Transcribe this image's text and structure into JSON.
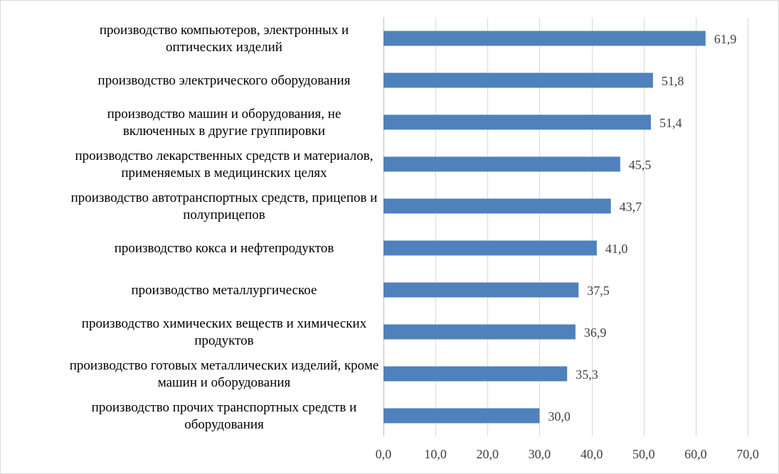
{
  "chart_data": {
    "type": "bar",
    "orientation": "horizontal",
    "categories": [
      [
        "производство компьютеров, электронных и",
        "оптических изделий"
      ],
      [
        "производство электрического оборудования"
      ],
      [
        "производство  машин и оборудования, не",
        "включенных в другие группировки"
      ],
      [
        "производство лекарственных средств и материалов,",
        "применяемых в медицинских целях"
      ],
      [
        "производство автотранспортных средств, прицепов и",
        "полуприцепов"
      ],
      [
        "производство кокса и нефтепродуктов"
      ],
      [
        "производство металлургическое"
      ],
      [
        "производство химических веществ и химических",
        "продуктов"
      ],
      [
        "производство готовых металлических изделий, кроме",
        "машин и оборудования"
      ],
      [
        "производство прочих транспортных средств и",
        "оборудования"
      ]
    ],
    "values": [
      61.9,
      51.8,
      51.4,
      45.5,
      43.7,
      41.0,
      37.5,
      36.9,
      35.3,
      30.0
    ],
    "value_labels": [
      "61,9",
      "51,8",
      "51,4",
      "45,5",
      "43,7",
      "41,0",
      "37,5",
      "36,9",
      "35,3",
      "30,0"
    ],
    "xlim": [
      0,
      70
    ],
    "ticks": [
      0,
      10,
      20,
      30,
      40,
      50,
      60,
      70
    ],
    "tick_labels": [
      "0,0",
      "10,0",
      "20,0",
      "30,0",
      "40,0",
      "50,0",
      "60,0",
      "70,0"
    ],
    "grid": true,
    "legend": "none",
    "title": "",
    "xlabel": "",
    "ylabel": "",
    "colors": {
      "bar": "#4f81bd",
      "grid": "#d9d9d9",
      "axis": "#bfbfbf"
    }
  }
}
